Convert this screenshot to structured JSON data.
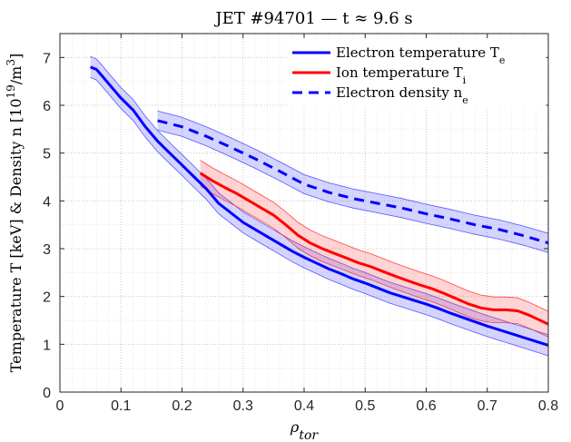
{
  "chart_data": {
    "type": "line",
    "title": "JET #94701 — t ≈ 9.6 s",
    "xlabel": "ρ_tor",
    "ylabel": "Temperature T [keV] & Density n [10^19/m^3]",
    "xlim": [
      0,
      0.8
    ],
    "ylim": [
      0,
      7.5
    ],
    "xticks": [
      "0",
      "0.1",
      "0.2",
      "0.3",
      "0.4",
      "0.5",
      "0.6",
      "0.7",
      "0.8"
    ],
    "yticks": [
      "0",
      "1",
      "2",
      "3",
      "4",
      "5",
      "6",
      "7"
    ],
    "grid": "major and minor, dotted",
    "legend_position": "top-right",
    "series": [
      {
        "name": "Electron temperature T_e",
        "color": "#0000ff",
        "style": "solid",
        "x": [
          0.05,
          0.06,
          0.07,
          0.08,
          0.09,
          0.1,
          0.12,
          0.14,
          0.16,
          0.18,
          0.2,
          0.22,
          0.24,
          0.26,
          0.28,
          0.3,
          0.32,
          0.34,
          0.36,
          0.38,
          0.4,
          0.42,
          0.44,
          0.46,
          0.48,
          0.5,
          0.52,
          0.54,
          0.56,
          0.58,
          0.6,
          0.62,
          0.64,
          0.66,
          0.68,
          0.7,
          0.72,
          0.74,
          0.76,
          0.78,
          0.8
        ],
        "y": [
          6.8,
          6.75,
          6.6,
          6.45,
          6.3,
          6.15,
          5.9,
          5.55,
          5.25,
          5.0,
          4.75,
          4.5,
          4.25,
          3.95,
          3.75,
          3.55,
          3.4,
          3.25,
          3.1,
          2.95,
          2.82,
          2.7,
          2.58,
          2.48,
          2.37,
          2.28,
          2.18,
          2.08,
          2.0,
          1.92,
          1.84,
          1.75,
          1.65,
          1.56,
          1.47,
          1.38,
          1.3,
          1.22,
          1.14,
          1.06,
          0.98
        ],
        "band": 0.22
      },
      {
        "name": "Ion temperature T_i",
        "color": "#ff0000",
        "style": "solid",
        "x": [
          0.23,
          0.25,
          0.27,
          0.29,
          0.31,
          0.33,
          0.35,
          0.37,
          0.39,
          0.41,
          0.43,
          0.45,
          0.47,
          0.49,
          0.51,
          0.53,
          0.55,
          0.57,
          0.59,
          0.61,
          0.63,
          0.65,
          0.67,
          0.69,
          0.71,
          0.73,
          0.75,
          0.77,
          0.8
        ],
        "y": [
          4.58,
          4.42,
          4.28,
          4.15,
          4.0,
          3.85,
          3.7,
          3.5,
          3.28,
          3.12,
          3.0,
          2.9,
          2.8,
          2.7,
          2.62,
          2.52,
          2.42,
          2.33,
          2.24,
          2.16,
          2.06,
          1.95,
          1.84,
          1.76,
          1.72,
          1.72,
          1.7,
          1.6,
          1.42
        ],
        "band": 0.27
      },
      {
        "name": "Electron density n_e",
        "color": "#0000ff",
        "style": "dashed",
        "x": [
          0.16,
          0.2,
          0.24,
          0.28,
          0.32,
          0.36,
          0.4,
          0.44,
          0.48,
          0.52,
          0.56,
          0.6,
          0.64,
          0.68,
          0.72,
          0.76,
          0.8
        ],
        "y": [
          5.68,
          5.55,
          5.35,
          5.12,
          4.88,
          4.62,
          4.35,
          4.18,
          4.05,
          3.95,
          3.85,
          3.73,
          3.62,
          3.5,
          3.4,
          3.27,
          3.12
        ],
        "band": 0.2
      }
    ]
  }
}
